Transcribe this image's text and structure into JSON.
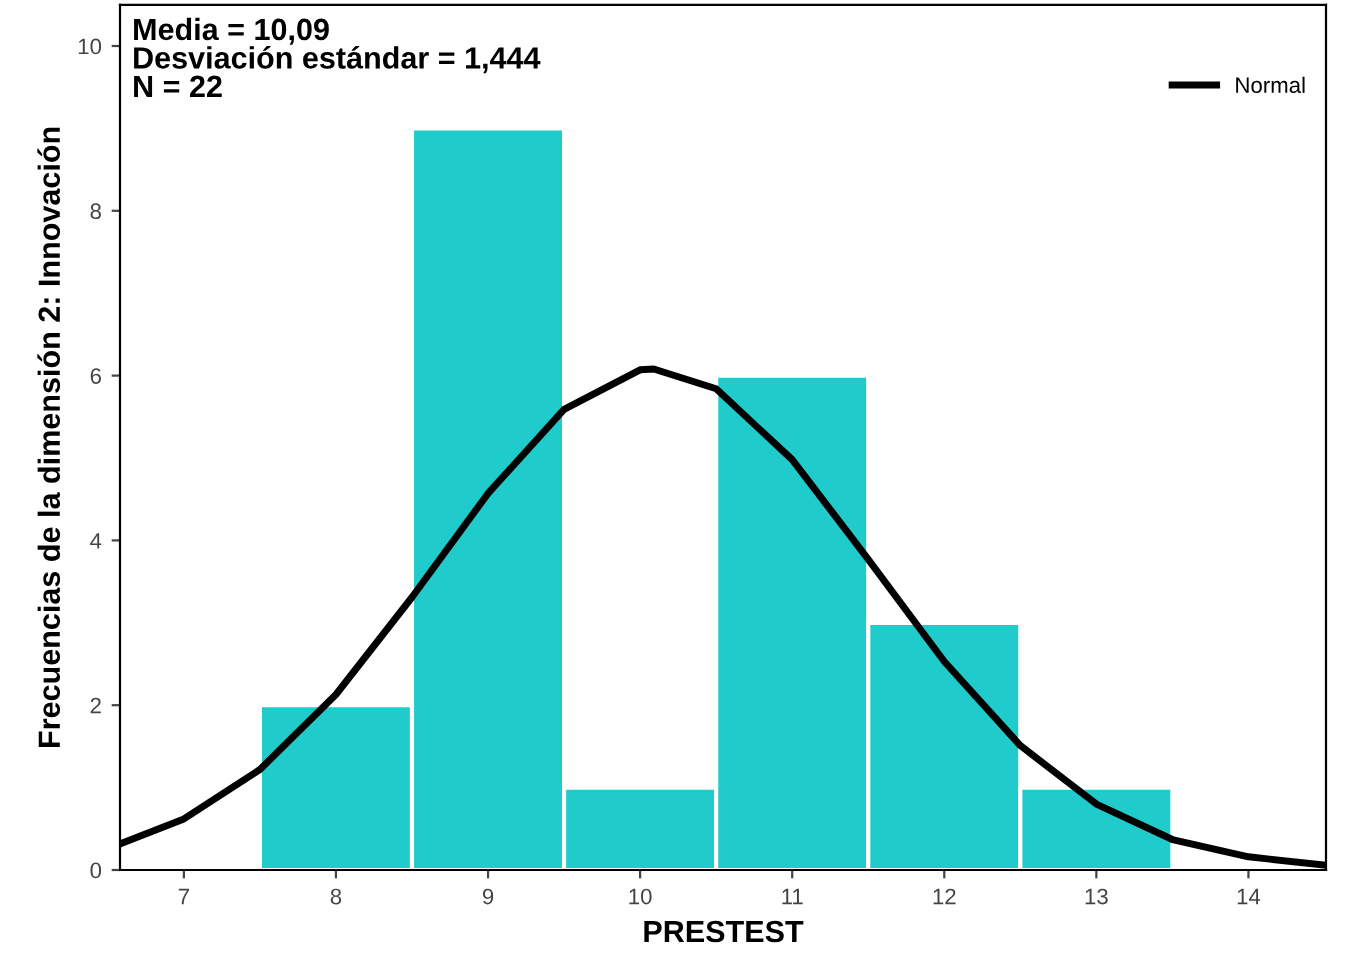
{
  "chart_data": {
    "type": "histogram",
    "xlabel": "PRESTEST",
    "ylabel": "Frecuencias de la dimensión 2: Innovación",
    "bins": [
      7.5,
      8.5,
      9.5,
      10.5,
      11.5,
      12.5,
      13.5
    ],
    "values": [
      2,
      9,
      1,
      6,
      3,
      1
    ],
    "color": "#1fcbcb",
    "series": [
      {
        "name": "Normal",
        "type": "line",
        "color": "#000000",
        "x": [
          6.6,
          7.0,
          7.5,
          8.0,
          8.5,
          9.0,
          9.5,
          10.0,
          10.09,
          10.5,
          11.0,
          11.5,
          12.0,
          12.5,
          13.0,
          13.5,
          14.0,
          14.5
        ],
        "values": [
          0.33,
          0.62,
          1.22,
          2.13,
          3.31,
          4.57,
          5.59,
          6.07,
          6.08,
          5.84,
          4.98,
          3.77,
          2.53,
          1.51,
          0.8,
          0.37,
          0.16,
          0.06
        ]
      }
    ],
    "annotations": [
      "Media = 10,09",
      "Desviación estándar = 1,444",
      "N = 22"
    ],
    "xlim": [
      6.58,
      14.51
    ],
    "xticks": [
      7,
      8,
      9,
      10,
      11,
      12,
      13,
      14
    ],
    "ylim": [
      0,
      10.5
    ],
    "yticks": [
      0,
      2,
      4,
      6,
      8,
      10
    ],
    "grid": false,
    "legend": "top right",
    "marker": "none",
    "line_style": "solid"
  }
}
